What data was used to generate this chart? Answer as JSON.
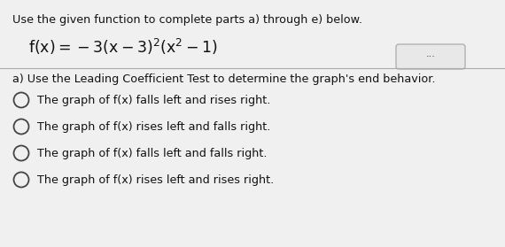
{
  "background_color": "#f0f0f0",
  "top_instruction": "Use the given function to complete parts a) through e) below.",
  "function_latex": "f(x)=-3(x-3)^{2}\\left(x^{2}-1\\right)",
  "question_label": "a) Use the Leading Coefficient Test to determine the graph's end behavior.",
  "options": [
    "The graph of f(x) falls left and rises right.",
    "The graph of f(x) rises left and falls right.",
    "The graph of f(x) falls left and falls right.",
    "The graph of f(x) rises left and rises right."
  ],
  "text_color": "#111111",
  "circle_edge_color": "#444444",
  "font_size_instruction": 9.2,
  "font_size_function": 12.5,
  "font_size_question": 9.2,
  "font_size_options": 9.2,
  "divider_color": "#aaaaaa",
  "btn_face_color": "#e8e8e8",
  "btn_edge_color": "#aaaaaa"
}
